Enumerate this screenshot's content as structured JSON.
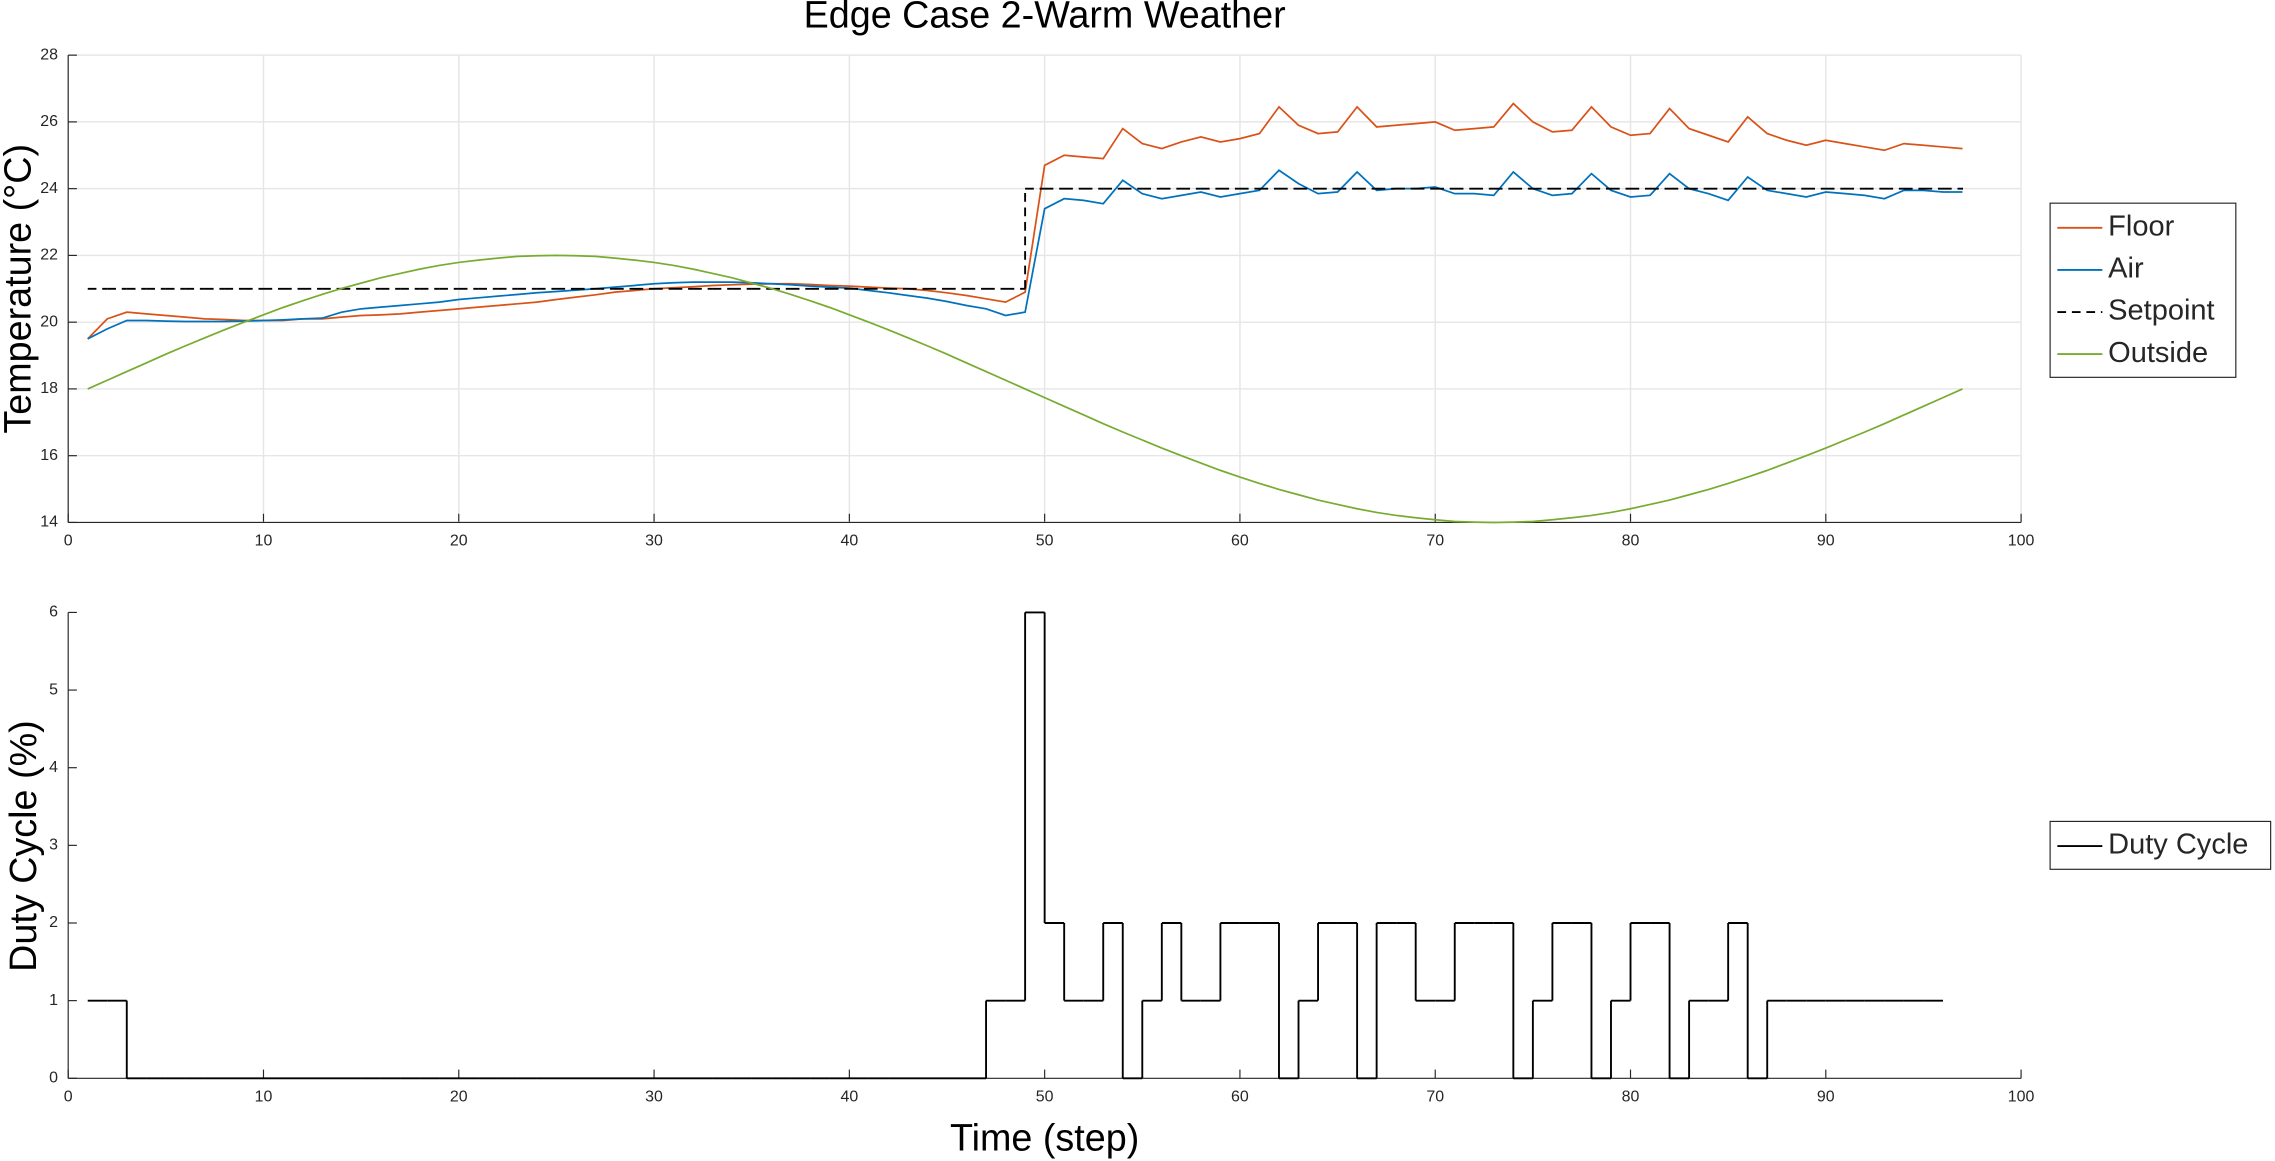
{
  "chart_data": [
    {
      "type": "line",
      "title": "Edge Case 2-Warm Weather",
      "ylabel": "Temperature (°C)",
      "x": [
        1,
        2,
        3,
        4,
        5,
        6,
        7,
        8,
        9,
        10,
        11,
        12,
        13,
        14,
        15,
        16,
        17,
        18,
        19,
        20,
        21,
        22,
        23,
        24,
        25,
        26,
        27,
        28,
        29,
        30,
        31,
        32,
        33,
        34,
        35,
        36,
        37,
        38,
        39,
        40,
        41,
        42,
        43,
        44,
        45,
        46,
        47,
        48,
        49,
        50,
        51,
        52,
        53,
        54,
        55,
        56,
        57,
        58,
        59,
        60,
        61,
        62,
        63,
        64,
        65,
        66,
        67,
        68,
        69,
        70,
        71,
        72,
        73,
        74,
        75,
        76,
        77,
        78,
        79,
        80,
        81,
        82,
        83,
        84,
        85,
        86,
        87,
        88,
        89,
        90,
        91,
        92,
        93,
        94,
        95,
        96,
        97
      ],
      "series": [
        {
          "name": "Floor",
          "color": "#D95319",
          "style": "line",
          "values": [
            19.5,
            20.1,
            20.3,
            20.25,
            20.2,
            20.15,
            20.1,
            20.08,
            20.05,
            20.05,
            20.05,
            20.1,
            20.1,
            20.15,
            20.2,
            20.22,
            20.25,
            20.3,
            20.35,
            20.4,
            20.45,
            20.5,
            20.55,
            20.6,
            20.68,
            20.75,
            20.82,
            20.9,
            20.95,
            21.0,
            21.03,
            21.06,
            21.1,
            21.12,
            21.14,
            21.15,
            21.15,
            21.13,
            21.1,
            21.08,
            21.05,
            21.02,
            21.0,
            20.95,
            20.88,
            20.8,
            20.7,
            20.6,
            20.9,
            24.7,
            25.0,
            24.95,
            24.9,
            25.8,
            25.35,
            25.2,
            25.4,
            25.55,
            25.4,
            25.5,
            25.65,
            26.45,
            25.9,
            25.65,
            25.7,
            26.45,
            25.85,
            25.9,
            25.95,
            26.0,
            25.75,
            25.8,
            25.85,
            26.55,
            26.0,
            25.7,
            25.75,
            26.45,
            25.85,
            25.6,
            25.65,
            26.4,
            25.8,
            25.6,
            25.4,
            26.15,
            25.65,
            25.45,
            25.3,
            25.45,
            25.35,
            25.25,
            25.15,
            25.35,
            25.3,
            25.25,
            25.2
          ]
        },
        {
          "name": "Air",
          "color": "#0072BD",
          "style": "line",
          "values": [
            19.5,
            19.8,
            20.05,
            20.05,
            20.03,
            20.02,
            20.02,
            20.02,
            20.03,
            20.05,
            20.07,
            20.1,
            20.12,
            20.3,
            20.4,
            20.45,
            20.5,
            20.55,
            20.6,
            20.68,
            20.73,
            20.78,
            20.83,
            20.88,
            20.92,
            20.96,
            21.0,
            21.05,
            21.1,
            21.15,
            21.18,
            21.2,
            21.2,
            21.2,
            21.18,
            21.15,
            21.12,
            21.08,
            21.05,
            21.02,
            20.95,
            20.88,
            20.8,
            20.72,
            20.62,
            20.5,
            20.4,
            20.2,
            20.3,
            23.4,
            23.7,
            23.65,
            23.55,
            24.25,
            23.85,
            23.7,
            23.8,
            23.9,
            23.75,
            23.85,
            23.95,
            24.55,
            24.15,
            23.85,
            23.9,
            24.5,
            23.95,
            24.0,
            24.0,
            24.05,
            23.85,
            23.85,
            23.8,
            24.5,
            24.0,
            23.8,
            23.85,
            24.45,
            23.95,
            23.75,
            23.8,
            24.45,
            24.0,
            23.85,
            23.65,
            24.35,
            23.95,
            23.85,
            23.75,
            23.9,
            23.85,
            23.8,
            23.7,
            23.95,
            23.95,
            23.9,
            23.9
          ]
        },
        {
          "name": "Setpoint",
          "color": "#000000",
          "style": "stairs",
          "line_style": "dashed",
          "values": [
            21,
            21,
            21,
            21,
            21,
            21,
            21,
            21,
            21,
            21,
            21,
            21,
            21,
            21,
            21,
            21,
            21,
            21,
            21,
            21,
            21,
            21,
            21,
            21,
            21,
            21,
            21,
            21,
            21,
            21,
            21,
            21,
            21,
            21,
            21,
            21,
            21,
            21,
            21,
            21,
            21,
            21,
            21,
            21,
            21,
            21,
            21,
            21,
            24,
            24,
            24,
            24,
            24,
            24,
            24,
            24,
            24,
            24,
            24,
            24,
            24,
            24,
            24,
            24,
            24,
            24,
            24,
            24,
            24,
            24,
            24,
            24,
            24,
            24,
            24,
            24,
            24,
            24,
            24,
            24,
            24,
            24,
            24,
            24,
            24,
            24,
            24,
            24,
            24,
            24,
            24,
            24,
            24,
            24,
            24,
            24,
            24
          ]
        },
        {
          "name": "Outside",
          "color": "#77AC30",
          "style": "line",
          "values": [
            18.0,
            18.26,
            18.52,
            18.78,
            19.04,
            19.29,
            19.53,
            19.77,
            20.0,
            20.22,
            20.44,
            20.64,
            20.83,
            21.01,
            21.17,
            21.33,
            21.46,
            21.59,
            21.7,
            21.79,
            21.86,
            21.92,
            21.97,
            21.99,
            22.0,
            21.99,
            21.97,
            21.92,
            21.86,
            21.79,
            21.7,
            21.59,
            21.46,
            21.33,
            21.17,
            21.01,
            20.83,
            20.64,
            20.44,
            20.22,
            20.0,
            19.77,
            19.53,
            19.29,
            19.04,
            18.78,
            18.52,
            18.26,
            18.0,
            17.74,
            17.48,
            17.22,
            16.96,
            16.71,
            16.47,
            16.23,
            16.0,
            15.78,
            15.56,
            15.36,
            15.17,
            14.99,
            14.83,
            14.67,
            14.54,
            14.41,
            14.3,
            14.21,
            14.14,
            14.08,
            14.03,
            14.01,
            14.0,
            14.01,
            14.03,
            14.08,
            14.14,
            14.21,
            14.3,
            14.41,
            14.54,
            14.67,
            14.83,
            14.99,
            15.17,
            15.36,
            15.56,
            15.78,
            16.0,
            16.23,
            16.47,
            16.71,
            16.96,
            17.22,
            17.48,
            17.74,
            18.0
          ]
        }
      ],
      "xlim": [
        0,
        100
      ],
      "xticks": [
        0,
        10,
        20,
        30,
        40,
        50,
        60,
        70,
        80,
        90,
        100
      ],
      "ylim": [
        14,
        28
      ],
      "yticks": [
        14,
        16,
        18,
        20,
        22,
        24,
        26,
        28
      ],
      "grid": true,
      "legend": "outside-right"
    },
    {
      "type": "line",
      "ylabel": "Duty Cycle (%)",
      "xlabel": "Time (step)",
      "x": [
        1,
        2,
        3,
        4,
        5,
        6,
        7,
        8,
        9,
        10,
        11,
        12,
        13,
        14,
        15,
        16,
        17,
        18,
        19,
        20,
        21,
        22,
        23,
        24,
        25,
        26,
        27,
        28,
        29,
        30,
        31,
        32,
        33,
        34,
        35,
        36,
        37,
        38,
        39,
        40,
        41,
        42,
        43,
        44,
        45,
        46,
        47,
        48,
        49,
        50,
        51,
        52,
        53,
        54,
        55,
        56,
        57,
        58,
        59,
        60,
        61,
        62,
        63,
        64,
        65,
        66,
        67,
        68,
        69,
        70,
        71,
        72,
        73,
        74,
        75,
        76,
        77,
        78,
        79,
        80,
        81,
        82,
        83,
        84,
        85,
        86,
        87,
        88,
        89,
        90,
        91,
        92,
        93,
        94,
        95,
        96
      ],
      "series": [
        {
          "name": "Duty Cycle",
          "color": "#000000",
          "style": "stairs",
          "values": [
            1,
            1,
            0,
            0,
            0,
            0,
            0,
            0,
            0,
            0,
            0,
            0,
            0,
            0,
            0,
            0,
            0,
            0,
            0,
            0,
            0,
            0,
            0,
            0,
            0,
            0,
            0,
            0,
            0,
            0,
            0,
            0,
            0,
            0,
            0,
            0,
            0,
            0,
            0,
            0,
            0,
            0,
            0,
            0,
            0,
            0,
            1,
            1,
            6,
            2,
            1,
            1,
            2,
            0,
            1,
            2,
            1,
            1,
            2,
            2,
            2,
            0,
            1,
            2,
            2,
            0,
            2,
            2,
            1,
            1,
            2,
            2,
            2,
            0,
            1,
            2,
            2,
            0,
            1,
            2,
            2,
            0,
            1,
            1,
            2,
            0,
            1,
            1,
            1,
            1,
            1,
            1,
            1,
            1,
            1,
            1
          ]
        }
      ],
      "xlim": [
        0,
        100
      ],
      "xticks": [
        0,
        10,
        20,
        30,
        40,
        50,
        60,
        70,
        80,
        90,
        100
      ],
      "ylim": [
        0,
        6
      ],
      "yticks": [
        0,
        1,
        2,
        3,
        4,
        5,
        6
      ],
      "grid": false,
      "legend": "outside-right"
    }
  ]
}
